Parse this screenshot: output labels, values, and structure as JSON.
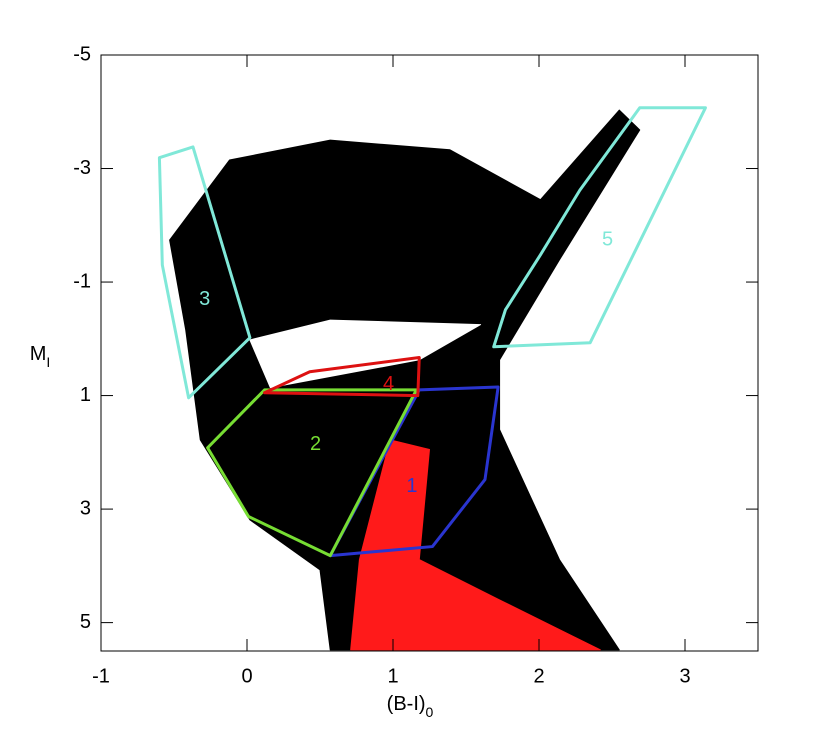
{
  "chart_data": {
    "type": "region",
    "xlabel": "(B-I)",
    "xlabel_sub": "0",
    "ylabel": "M",
    "ylabel_sub": "I",
    "xlim": [
      -1,
      3.5
    ],
    "ylim": [
      5.5,
      -5
    ],
    "xticks": [
      -1,
      0,
      1,
      2,
      3
    ],
    "yticks": [
      5,
      3,
      1,
      -1,
      -3,
      -5
    ],
    "series": [
      {
        "color": "#000000",
        "fill": true,
        "x": [
          -0.53,
          -0.12,
          0.57,
          1.39,
          2.01,
          2.55,
          2.69,
          2.14,
          1.73,
          1.73,
          2.14,
          2.55,
          0.57,
          0.5,
          0.02,
          -0.32,
          -0.42
        ],
        "values": [
          -1.74,
          -3.15,
          -3.5,
          -3.33,
          -2.45,
          -4.03,
          -3.68,
          -1.39,
          0.37,
          1.6,
          3.89,
          5.48,
          5.48,
          4.07,
          3.19,
          1.78,
          -0.16
        ]
      },
      {
        "color": "#ffffff",
        "fill": true,
        "x": [
          0.02,
          0.57,
          1.6,
          1.18,
          0.16
        ],
        "values": [
          0.02,
          -0.33,
          -0.25,
          0.37,
          0.86
        ]
      },
      {
        "color": "#ff1a1a",
        "fill": true,
        "x": [
          0.77,
          0.98,
          1.25,
          1.18,
          1.73,
          2.42,
          0.71
        ],
        "values": [
          3.89,
          1.78,
          1.95,
          3.89,
          4.6,
          5.48,
          5.48
        ]
      },
      {
        "color": "#2a35d0",
        "fill": false,
        "label": "1",
        "label_x": 1.13,
        "label_y": 2.61,
        "x": [
          1.18,
          1.72,
          1.63,
          1.27,
          0.57
        ],
        "values": [
          0.9,
          0.85,
          2.48,
          3.66,
          3.82
        ]
      },
      {
        "color": "#77dd33",
        "fill": false,
        "label": "2",
        "label_x": 0.47,
        "label_y": 1.87,
        "x": [
          0.12,
          1.16,
          0.57,
          0.01,
          -0.27
        ],
        "values": [
          0.9,
          0.9,
          3.82,
          3.13,
          1.92
        ]
      },
      {
        "color": "#80e8d8",
        "fill": false,
        "label": "3",
        "label_x": -0.29,
        "label_y": -0.69,
        "x": [
          -0.6,
          -0.37,
          0.02,
          -0.4,
          -0.58
        ],
        "values": [
          -3.19,
          -3.38,
          -0.02,
          1.04,
          -1.3
        ]
      },
      {
        "color": "#dd1111",
        "fill": false,
        "label": "4",
        "label_x": 0.97,
        "label_y": 0.81,
        "x": [
          0.12,
          0.43,
          1.18,
          1.17
        ],
        "values": [
          0.95,
          0.58,
          0.33,
          1.0
        ]
      },
      {
        "color": "#80e8d8",
        "fill": false,
        "label": "5",
        "label_x": 2.47,
        "label_y": -1.74,
        "x": [
          2.69,
          3.14,
          2.35,
          1.69,
          1.77,
          2.01,
          2.28
        ],
        "values": [
          -4.07,
          -4.07,
          0.07,
          0.14,
          -0.51,
          -1.48,
          -2.62
        ]
      }
    ]
  }
}
